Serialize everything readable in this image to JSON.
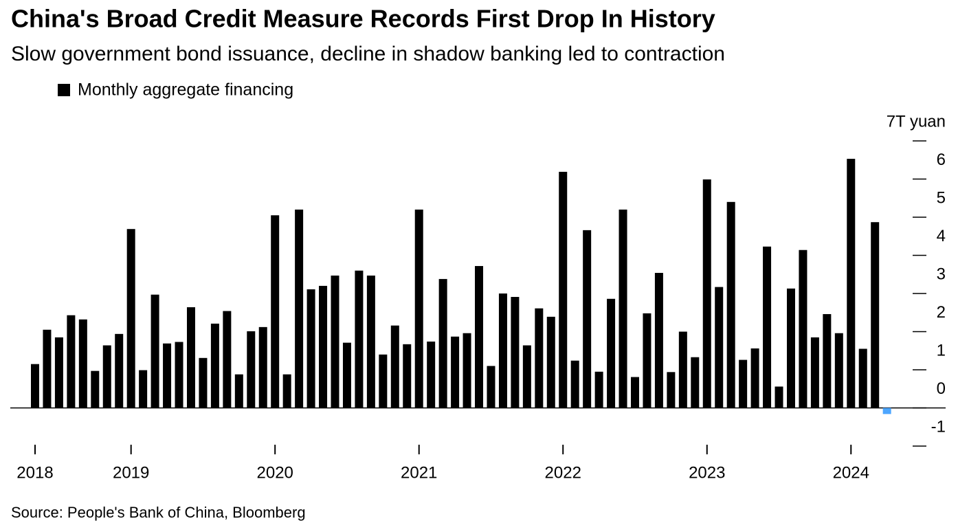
{
  "chart_data": {
    "type": "bar",
    "title": "China's Broad Credit Measure Records First Drop In History",
    "subtitle": "Slow government bond issuance, decline in shadow banking led to contraction",
    "source": "Source: People's Bank of China, Bloomberg",
    "categories": [
      "2018",
      null,
      null,
      null,
      null,
      null,
      null,
      null,
      "2019",
      null,
      null,
      null,
      null,
      null,
      null,
      null,
      null,
      null,
      null,
      null,
      "2020",
      null,
      null,
      null,
      null,
      null,
      null,
      null,
      null,
      null,
      null,
      null,
      "2021",
      null,
      null,
      null,
      null,
      null,
      null,
      null,
      null,
      null,
      null,
      null,
      "2022",
      null,
      null,
      null,
      null,
      null,
      null,
      null,
      null,
      null,
      null,
      null,
      "2023",
      null,
      null,
      null,
      null,
      null,
      null,
      null,
      null,
      null,
      null,
      null,
      "2024",
      null,
      null,
      null
    ],
    "series": [
      {
        "name": "Monthly aggregate financing",
        "color": "#000000",
        "negative_color": "#4da6ff",
        "values": [
          1.15,
          2.05,
          1.85,
          2.43,
          2.32,
          0.97,
          1.64,
          1.94,
          4.69,
          0.99,
          2.97,
          1.69,
          1.73,
          2.64,
          1.31,
          2.21,
          2.54,
          0.88,
          2.01,
          2.12,
          5.05,
          0.88,
          5.2,
          3.11,
          3.2,
          3.47,
          1.71,
          3.6,
          3.47,
          1.4,
          2.16,
          1.67,
          5.2,
          1.74,
          3.38,
          1.87,
          1.96,
          3.72,
          1.1,
          3.0,
          2.91,
          1.64,
          2.61,
          2.39,
          6.19,
          1.24,
          4.66,
          0.95,
          2.86,
          5.2,
          0.81,
          2.48,
          3.54,
          0.94,
          2.0,
          1.33,
          5.99,
          3.17,
          5.4,
          1.26,
          1.56,
          4.23,
          0.56,
          3.13,
          4.14,
          1.85,
          2.46,
          1.96,
          6.53,
          1.55,
          4.87,
          -0.16
        ]
      }
    ],
    "ylim": [
      -1,
      7
    ],
    "yticks": [
      -1,
      0,
      1,
      2,
      3,
      4,
      5,
      6,
      {
        "value": 7,
        "label": "7T yuan"
      }
    ]
  }
}
